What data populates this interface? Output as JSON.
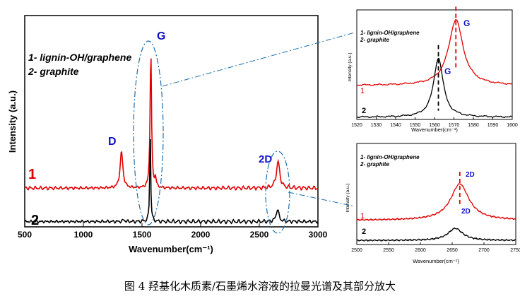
{
  "caption": "图 4 羟基化木质素/石墨烯水溶液的拉曼光谱及其部分放大",
  "colors": {
    "series1": "#e00000",
    "series2": "#000000",
    "peak_label": "#1010cc",
    "guide": "#1c6fae"
  },
  "chart_data": [
    {
      "type": "line",
      "panel": "main",
      "xlabel": "Wavenumber(cm⁻¹)",
      "ylabel": "Intensity (a.u.)",
      "xlim": [
        500,
        3000
      ],
      "xticks": [
        "500",
        "1000",
        "1500",
        "2000",
        "2500",
        "3000"
      ],
      "ylim": [
        0,
        12
      ],
      "legend": [
        "1- lignin-OH/graphene",
        "2- graphite"
      ],
      "series": [
        {
          "name": "1",
          "label": "1",
          "offset": 2.2,
          "peaks": [
            {
              "center": 1325,
              "height": 2.1,
              "width": 28
            },
            {
              "center": 1575,
              "height": 8.2,
              "width": 14
            },
            {
              "center": 1615,
              "height": 0.6,
              "width": 12
            },
            {
              "center": 2660,
              "height": 1.5,
              "width": 35
            }
          ]
        },
        {
          "name": "2",
          "label": "2",
          "offset": 0.3,
          "peaks": [
            {
              "center": 1345,
              "height": 0.1,
              "width": 20
            },
            {
              "center": 1570,
              "height": 5.1,
              "width": 10
            },
            {
              "center": 2655,
              "height": 0.7,
              "width": 28
            }
          ]
        }
      ],
      "annotations": [
        {
          "text": "D",
          "x": 1325
        },
        {
          "text": "G",
          "x": 1575
        },
        {
          "text": "2D",
          "x": 2660
        }
      ]
    },
    {
      "type": "line",
      "panel": "zoom-G",
      "xlabel": "Wavenumber(cm⁻¹)",
      "ylabel": "Intensity (a.u.)",
      "xlim": [
        1520,
        1600
      ],
      "xticks": [
        "1520",
        "1530",
        "1540",
        "1550",
        "1560",
        "1570",
        "1580",
        "1590",
        "1600"
      ],
      "ylim": [
        0,
        10
      ],
      "legend": [
        "1- lignin-OH/graphene",
        "2- graphite"
      ],
      "series": [
        {
          "name": "1",
          "label": "1",
          "offset": 3.1,
          "peaks": [
            {
              "center": 1571,
              "height": 6.0,
              "width": 9
            }
          ]
        },
        {
          "name": "2",
          "label": "2",
          "offset": 0.2,
          "peaks": [
            {
              "center": 1562,
              "height": 5.4,
              "width": 6
            }
          ]
        }
      ],
      "markers": [
        {
          "x": 1571,
          "series": "1"
        },
        {
          "x": 1562,
          "series": "2"
        }
      ],
      "annotations": [
        {
          "text": "G",
          "x": 1575,
          "series": "1"
        },
        {
          "text": "G",
          "x": 1565,
          "series": "2"
        }
      ]
    },
    {
      "type": "line",
      "panel": "zoom-2D",
      "xlabel": "Wavenumber(cm⁻¹)",
      "ylabel": "Intensity (a.u.)",
      "xlim": [
        2500,
        2750
      ],
      "xticks": [
        "2500",
        "2550",
        "2600",
        "2650",
        "2700",
        "2750"
      ],
      "ylim": [
        0,
        10
      ],
      "legend": [
        "1- lignin-OH/graphene",
        "2- graphite"
      ],
      "series": [
        {
          "name": "1",
          "label": "1",
          "offset": 2.4,
          "peaks": [
            {
              "center": 2662,
              "height": 3.6,
              "width": 35
            }
          ]
        },
        {
          "name": "2",
          "label": "2",
          "offset": 0.4,
          "peaks": [
            {
              "center": 2655,
              "height": 1.2,
              "width": 28
            }
          ]
        }
      ],
      "markers": [
        {
          "x": 2662,
          "series": "1"
        }
      ],
      "annotations": [
        {
          "text": "2D",
          "x": 2672,
          "series": "1"
        },
        {
          "text": "2D",
          "x": 2668,
          "series": "2"
        }
      ]
    }
  ]
}
